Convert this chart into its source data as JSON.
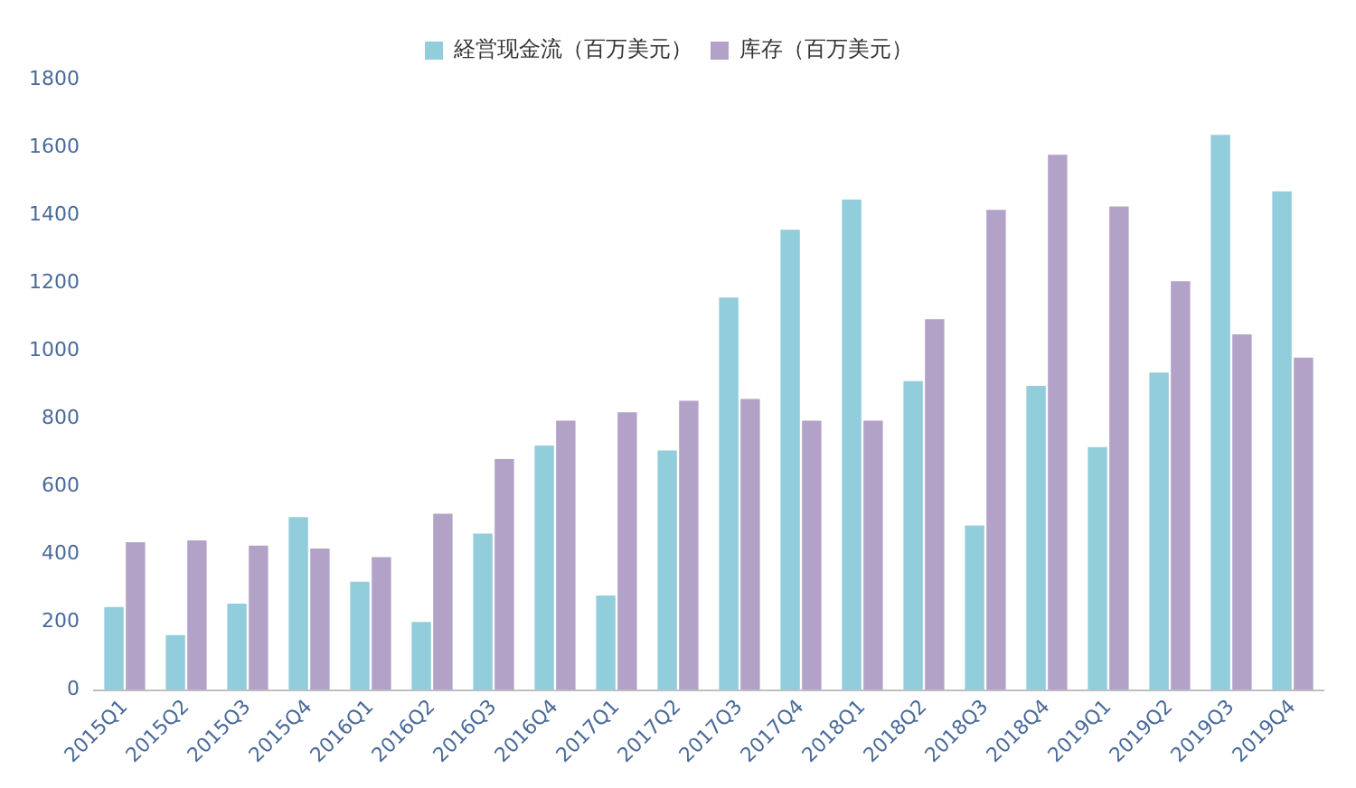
{
  "chart_data": {
    "type": "bar",
    "categories": [
      "2015Q1",
      "2015Q2",
      "2015Q3",
      "2015Q4",
      "2016Q1",
      "2016Q2",
      "2016Q3",
      "2016Q4",
      "2017Q1",
      "2017Q2",
      "2017Q3",
      "2017Q4",
      "2018Q1",
      "2018Q2",
      "2018Q3",
      "2018Q4",
      "2019Q1",
      "2019Q2",
      "2019Q3",
      "2019Q4"
    ],
    "series": [
      {
        "name": "経営现金流（百万美元）",
        "color": "#92cddc",
        "values": [
          245,
          162,
          255,
          510,
          319,
          201,
          461,
          721,
          279,
          706,
          1157,
          1357,
          1446,
          911,
          485,
          897,
          716,
          936,
          1637,
          1470
        ]
      },
      {
        "name": "库存（百万美元）",
        "color": "#b3a2c7",
        "values": [
          436,
          441,
          426,
          417,
          392,
          520,
          681,
          794,
          819,
          853,
          858,
          794,
          794,
          1093,
          1416,
          1578,
          1426,
          1205,
          1049,
          980
        ]
      }
    ],
    "ylim": [
      0,
      1800
    ],
    "yticks": [
      0,
      200,
      400,
      600,
      800,
      1000,
      1200,
      1400,
      1600,
      1800
    ],
    "grid": false,
    "legend": "top"
  }
}
